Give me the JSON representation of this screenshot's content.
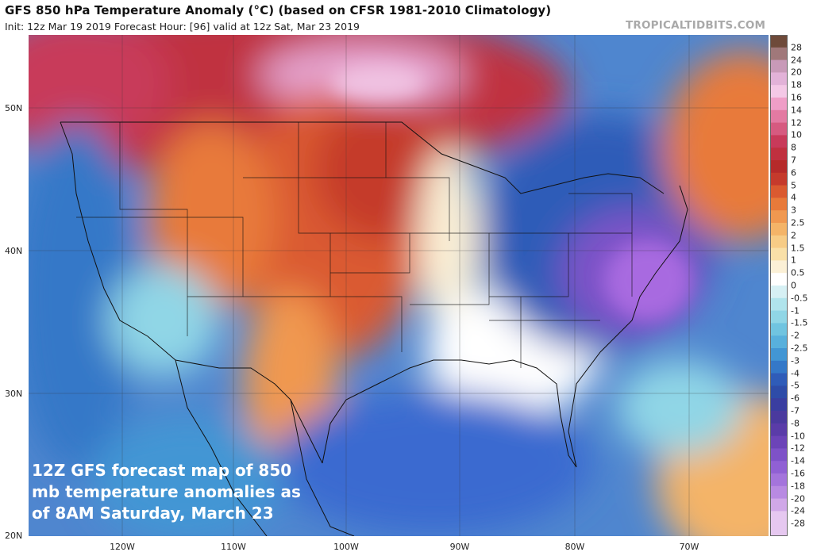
{
  "title": "GFS 850 hPa Temperature Anomaly (°C) (based on CFSR 1981-2010 Climatology)",
  "subtitle": "Init: 12z Mar 19 2019   Forecast Hour: [96]   valid at 12z Sat, Mar 23 2019",
  "credit": "TROPICALTIDBITS.COM",
  "caption_lines": [
    "12Z GFS forecast map of 850",
    "mb temperature anomalies as",
    "of 8AM Saturday, March 23"
  ],
  "lat_labels": [
    "50N",
    "40N",
    "30N",
    "20N"
  ],
  "lon_labels": [
    "120W",
    "110W",
    "100W",
    "90W",
    "80W",
    "70W"
  ],
  "colorbar": {
    "labels": [
      "28",
      "24",
      "20",
      "18",
      "16",
      "14",
      "12",
      "10",
      "8",
      "7",
      "6",
      "5",
      "4",
      "3",
      "2.5",
      "2",
      "1.5",
      "1",
      "0.5",
      "0",
      "-0.5",
      "-1",
      "-1.5",
      "-2",
      "-2.5",
      "-3",
      "-4",
      "-5",
      "-6",
      "-7",
      "-8",
      "-10",
      "-12",
      "-14",
      "-16",
      "-18",
      "-20",
      "-24",
      "-28"
    ],
    "colors": [
      "#6e4a3a",
      "#a0787a",
      "#c89ab8",
      "#e2b2d8",
      "#f4c8e6",
      "#ef9ec7",
      "#e37aa2",
      "#d65a80",
      "#c83a5a",
      "#c0303f",
      "#b52a2a",
      "#c53a2c",
      "#da5a30",
      "#e87a3a",
      "#f09850",
      "#f4b468",
      "#f7cc86",
      "#f9e0a8",
      "#fbf0d6",
      "#ffffff",
      "#d6f0f4",
      "#b0e4ec",
      "#90d6e6",
      "#70c4e0",
      "#58b0dc",
      "#4296d4",
      "#3478c8",
      "#2f5cb8",
      "#2e4ca8",
      "#3a3ea0",
      "#4a3a9e",
      "#5a3ca8",
      "#6c44b8",
      "#7e52c8",
      "#9060d4",
      "#a474dc",
      "#b88ae2",
      "#d0a8e8",
      "#e6c8f0"
    ]
  }
}
